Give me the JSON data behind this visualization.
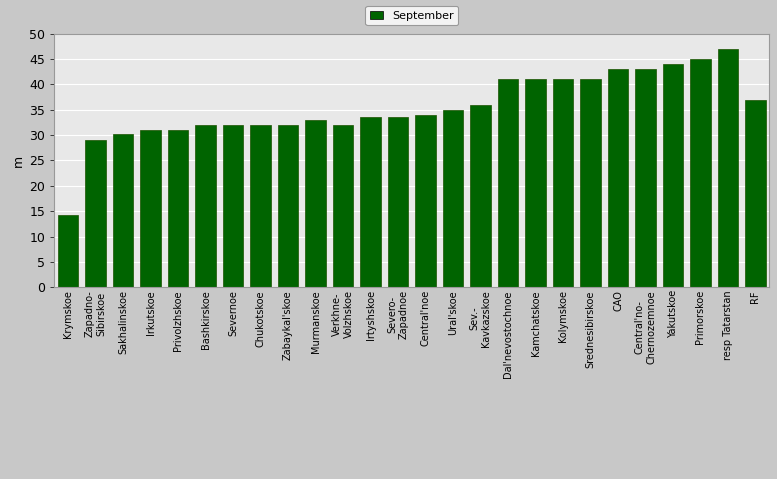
{
  "categories": [
    "Krymskoe",
    "Zapadno-\nSibirskoe",
    "Sakhalinskoe",
    "Irkutskoe",
    "Privolzhskoe",
    "Bashkirskoe",
    "Severnoe",
    "Chukotskoe",
    "Zabaykal'skoe",
    "Murmanskoe",
    "Verkhne-\nVolzhskoe",
    "Irtyshskoe",
    "Severo-\nZapadnoe",
    "Central'noe",
    "Ural'skoe",
    "Sev.-\nKavkazskoe",
    "Dal'nevostochnoe",
    "Kamchatskoe",
    "Kolymskoe",
    "Srednesibirskoe",
    "CAO",
    "Central'no-\nChernozemnoe",
    "Yakutskoe",
    "Primorskoe",
    "resp Tatarstan",
    "RF"
  ],
  "values": [
    14.2,
    29.0,
    30.2,
    31.0,
    31.0,
    32.0,
    32.0,
    32.0,
    32.0,
    33.0,
    32.0,
    33.5,
    33.5,
    34.0,
    35.0,
    36.0,
    41.0,
    41.0,
    41.0,
    41.0,
    43.0,
    43.0,
    44.0,
    45.0,
    47.0,
    37.0
  ],
  "bar_color": "#006400",
  "bar_edge_color": "#1a5200",
  "figure_bg": "#c8c8c8",
  "axes_bg": "#e8e8e8",
  "grid_color": "#ffffff",
  "spine_color": "#999999",
  "ylabel": "m",
  "ylim": [
    0,
    50
  ],
  "yticks": [
    0,
    5,
    10,
    15,
    20,
    25,
    30,
    35,
    40,
    45,
    50
  ],
  "legend_label": "September",
  "bar_width": 0.75,
  "tick_fontsize": 7,
  "ylabel_fontsize": 9,
  "legend_fontsize": 8
}
